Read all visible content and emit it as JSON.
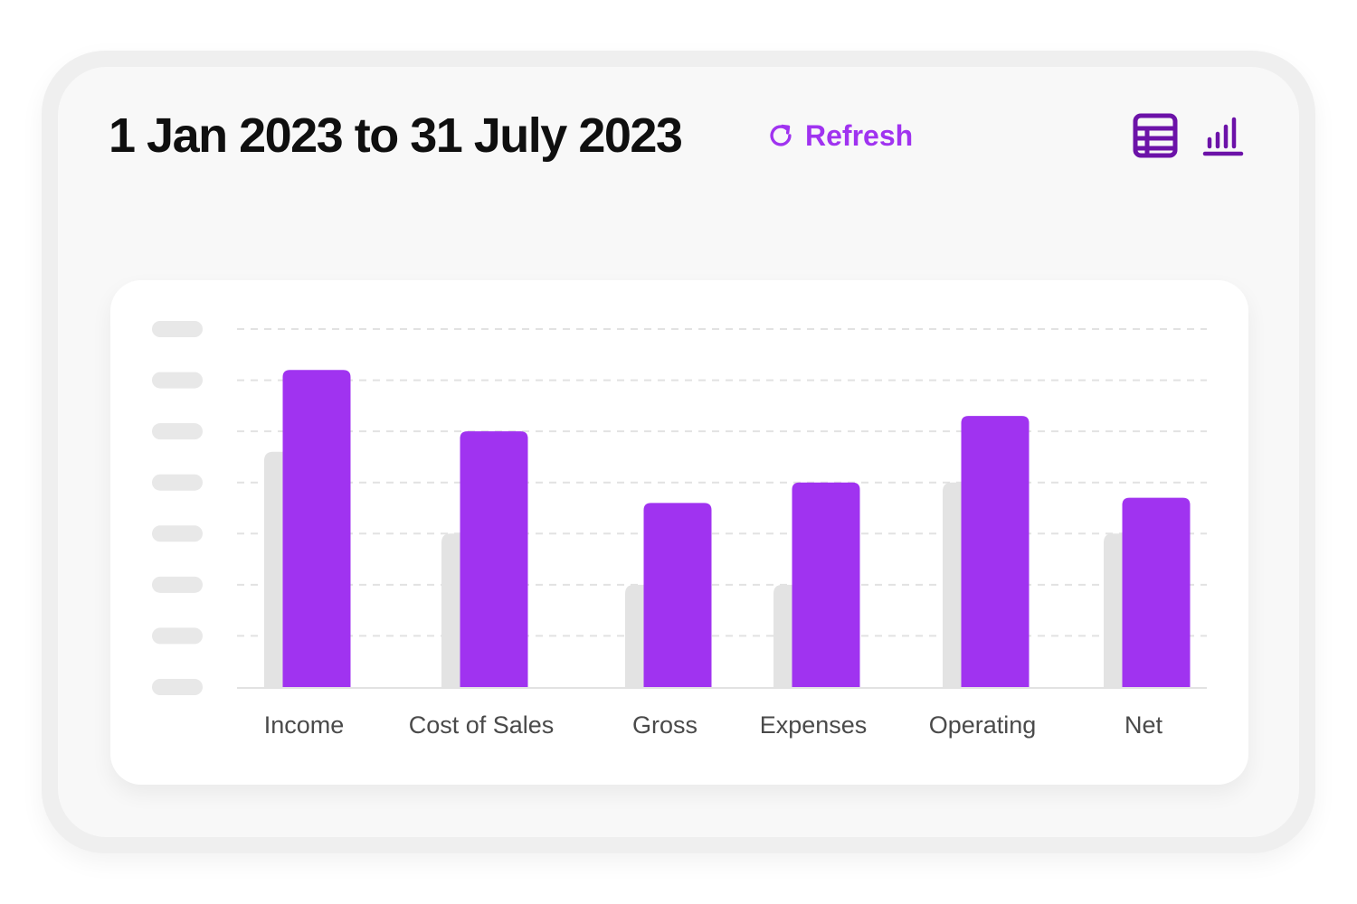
{
  "header": {
    "title": "1 Jan 2023 to 31 July 2023",
    "refresh_label": "Refresh",
    "refresh_icon": "refresh-icon",
    "view_toggles": [
      {
        "icon": "table-icon",
        "active": false
      },
      {
        "icon": "bar-chart-icon",
        "active": true
      }
    ]
  },
  "colors": {
    "accent": "#a033f0",
    "primary_bar": "#a033f0",
    "comparison_bar": "#e3e3e3",
    "icon_dark": "#6c12a8",
    "axis_placeholder": "#e8e8e8",
    "gridline": "#e2e2e2"
  },
  "chart_data": {
    "type": "bar",
    "title": "",
    "xlabel": "",
    "ylabel": "",
    "categories": [
      "Income",
      "Cost of Sales",
      "Gross",
      "Expenses",
      "Operating",
      "Net"
    ],
    "series": [
      {
        "values": [
          4.6,
          3.0,
          2.0,
          2.0,
          4.0,
          3.0
        ]
      },
      {
        "values": [
          6.2,
          5.0,
          3.6,
          4.0,
          5.3,
          3.7
        ]
      }
    ],
    "ylim": [
      0,
      7
    ],
    "y_tick_count": 8,
    "y_tick_labels_visible": false,
    "grid": true
  }
}
